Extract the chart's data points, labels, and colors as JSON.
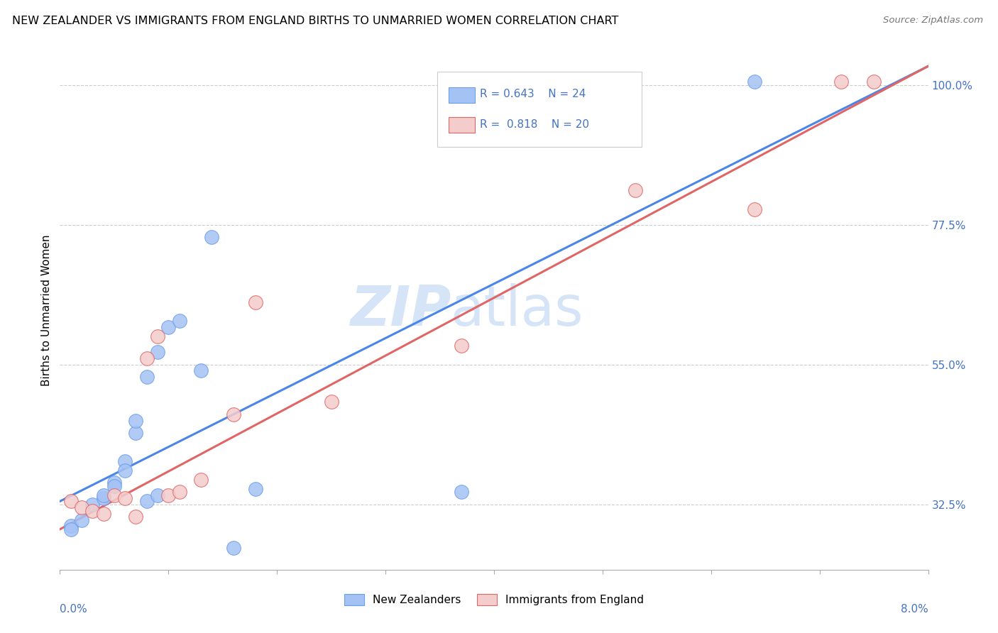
{
  "title": "NEW ZEALANDER VS IMMIGRANTS FROM ENGLAND BIRTHS TO UNMARRIED WOMEN CORRELATION CHART",
  "source": "Source: ZipAtlas.com",
  "ylabel": "Births to Unmarried Women",
  "xmin": 0.0,
  "xmax": 0.08,
  "ymin": 0.22,
  "ymax": 1.055,
  "yticks": [
    0.325,
    0.55,
    0.775,
    1.0
  ],
  "ytick_labels": [
    "32.5%",
    "55.0%",
    "77.5%",
    "100.0%"
  ],
  "legend_labels": [
    "New Zealanders",
    "Immigrants from England"
  ],
  "blue_R": "0.643",
  "blue_N": "24",
  "pink_R": "0.818",
  "pink_N": "20",
  "blue_color": "#a4c2f4",
  "pink_color": "#f4cccc",
  "blue_edge": "#6d9eeb",
  "pink_edge": "#e06666",
  "line_blue": "#4a86e8",
  "line_pink": "#e06666",
  "label_color": "#4472c4",
  "watermark_color": "#d6e4f7",
  "blue_points_x": [
    0.001,
    0.001,
    0.002,
    0.003,
    0.004,
    0.004,
    0.005,
    0.005,
    0.006,
    0.006,
    0.007,
    0.007,
    0.008,
    0.008,
    0.009,
    0.009,
    0.01,
    0.011,
    0.013,
    0.014,
    0.016,
    0.018,
    0.037,
    0.064
  ],
  "blue_points_y": [
    0.29,
    0.285,
    0.3,
    0.325,
    0.335,
    0.34,
    0.36,
    0.355,
    0.395,
    0.38,
    0.44,
    0.46,
    0.33,
    0.53,
    0.57,
    0.34,
    0.61,
    0.62,
    0.54,
    0.755,
    0.255,
    0.35,
    0.345,
    1.005
  ],
  "pink_points_x": [
    0.001,
    0.002,
    0.003,
    0.004,
    0.005,
    0.006,
    0.007,
    0.008,
    0.009,
    0.01,
    0.011,
    0.013,
    0.016,
    0.018,
    0.025,
    0.037,
    0.053,
    0.064,
    0.072,
    0.075
  ],
  "pink_points_y": [
    0.33,
    0.32,
    0.315,
    0.31,
    0.34,
    0.335,
    0.305,
    0.56,
    0.595,
    0.34,
    0.345,
    0.365,
    0.47,
    0.65,
    0.49,
    0.58,
    0.83,
    0.8,
    1.005,
    1.005
  ],
  "blue_line_x0": 0.0,
  "blue_line_y0": 0.33,
  "blue_line_x1": 0.08,
  "blue_line_y1": 1.03,
  "pink_line_x0": 0.0,
  "pink_line_y0": 0.285,
  "pink_line_x1": 0.08,
  "pink_line_y1": 1.03
}
